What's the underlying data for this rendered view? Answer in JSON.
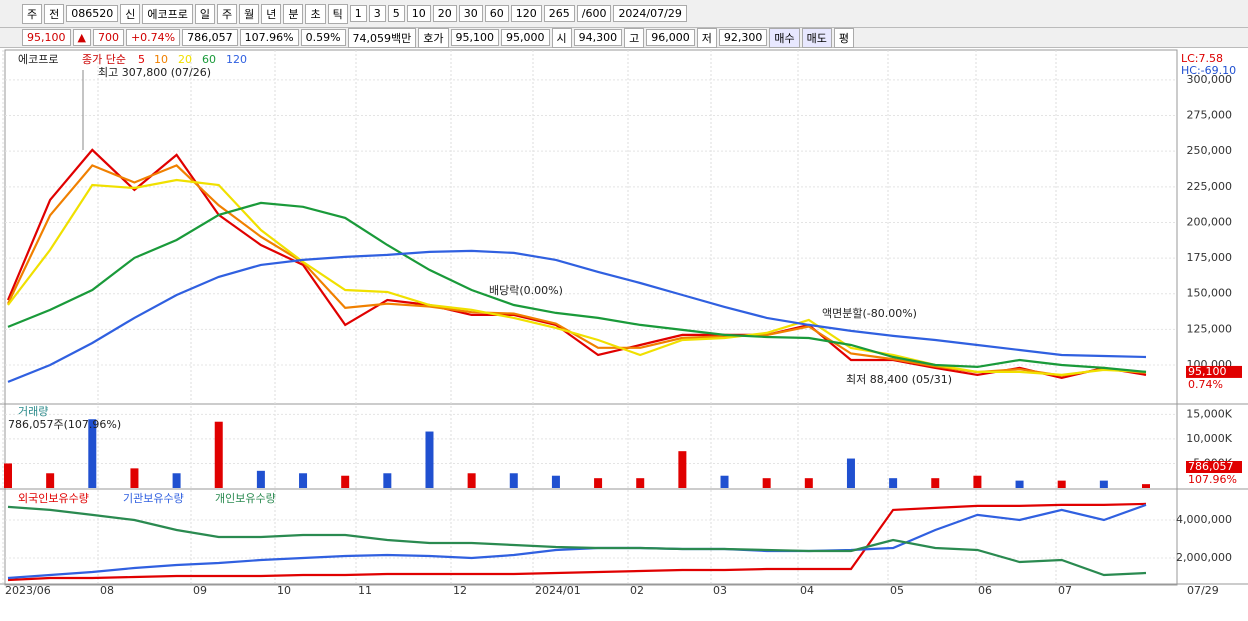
{
  "toolbar": {
    "row1": [
      "주",
      "전",
      "086520",
      "신",
      "에코프로",
      "일",
      "주",
      "월",
      "년",
      "분",
      "초",
      "틱",
      "1",
      "3",
      "5",
      "10",
      "20",
      "30",
      "60",
      "120",
      "265",
      "/600",
      "2024/07/29"
    ],
    "row2": [
      "95,100",
      "▲",
      "700",
      "+0.74%",
      "786,057",
      "107.96%",
      "0.59%",
      "74,059백만",
      "호가",
      "95,100",
      "95,000",
      "시",
      "94,300",
      "고",
      "96,000",
      "저",
      "92,300",
      "매수",
      "매도",
      "평"
    ]
  },
  "time_axis": {
    "labels": [
      "2023/06",
      "08",
      "09",
      "10",
      "11",
      "12",
      "2024/01",
      "02",
      "03",
      "04",
      "05",
      "06",
      "07",
      "07/29"
    ]
  },
  "chart_data": [
    {
      "type": "line",
      "title": "에코프로",
      "legend_title": "종가 단순",
      "series": [
        {
          "name": "5",
          "color": "#e00000",
          "values": [
            145600,
            215800,
            250900,
            222800,
            247400,
            205300,
            184200,
            170200,
            128100,
            145600,
            142100,
            135100,
            135100,
            128100,
            107000,
            114000,
            121100,
            121100,
            121100,
            128100,
            103500,
            103500,
            97900,
            93000,
            97900,
            90900,
            97900,
            93000
          ]
        },
        {
          "name": "10",
          "color": "#f08000",
          "values": [
            143000,
            205000,
            240000,
            228000,
            240000,
            212000,
            190000,
            172000,
            140000,
            143000,
            141000,
            137000,
            136000,
            129000,
            112000,
            112000,
            119000,
            120000,
            121000,
            127000,
            108000,
            104000,
            99000,
            95000,
            97000,
            92500,
            97000,
            94500
          ]
        },
        {
          "name": "20",
          "color": "#f0e000",
          "values": [
            142100,
            180700,
            226300,
            224200,
            229800,
            226300,
            194700,
            172300,
            152600,
            151200,
            142100,
            138600,
            133000,
            126000,
            117500,
            107000,
            117500,
            118900,
            122500,
            131600,
            111900,
            107000,
            100000,
            95100,
            95100,
            93000,
            96500,
            95100
          ]
        },
        {
          "name": "60",
          "color": "#1a9a3a",
          "values": [
            126700,
            138600,
            152600,
            175100,
            187700,
            205300,
            213700,
            211000,
            203200,
            184200,
            166700,
            152600,
            142100,
            136500,
            133000,
            128100,
            124600,
            121100,
            119600,
            118900,
            114000,
            105600,
            100000,
            98600,
            103500,
            100000,
            97900,
            95100
          ]
        },
        {
          "name": "120",
          "color": "#3060e0",
          "values": [
            88100,
            100000,
            115400,
            133000,
            149100,
            161800,
            170200,
            173700,
            175800,
            177200,
            179300,
            180000,
            178600,
            173700,
            165300,
            157500,
            149100,
            140700,
            133000,
            128100,
            123900,
            120400,
            117500,
            114000,
            110500,
            107000,
            106300,
            105600
          ]
        }
      ],
      "ylim": [
        73300,
        319600
      ],
      "yticks": [
        {
          "value": 100000,
          "label": "100,000"
        },
        {
          "value": 125000,
          "label": "125,000"
        },
        {
          "value": 150000,
          "label": "150,000"
        },
        {
          "value": 175000,
          "label": "175,000"
        },
        {
          "value": 200000,
          "label": "200,000"
        },
        {
          "value": 225000,
          "label": "225,000"
        },
        {
          "value": 250000,
          "label": "250,000"
        },
        {
          "value": 275000,
          "label": "275,000"
        },
        {
          "value": 300000,
          "label": "300,000"
        }
      ],
      "annotations": [
        "최고 307,800 (07/26)",
        "배당락(0.00%)",
        "액면분할(-80.00%)",
        "최저 88,400 (05/31)"
      ],
      "lc": "LC:7.58",
      "hc": "HC:-69.10",
      "current": {
        "value": 95100,
        "label": "95,100"
      },
      "current_change": "0.74%"
    },
    {
      "type": "bar",
      "title": "거래량",
      "subtitle": "786,057주(107.96%)",
      "values": [
        5000,
        3000,
        14000,
        4000,
        3000,
        13500,
        3500,
        3000,
        2500,
        3000,
        11500,
        3000,
        3000,
        2500,
        2000,
        2000,
        7500,
        2500,
        2000,
        2000,
        6000,
        2000,
        2000,
        2500,
        1500,
        1500,
        1500,
        786.057
      ],
      "colors": [
        "#e00000",
        "#e00000",
        "#2050d0",
        "#e00000",
        "#2050d0",
        "#e00000",
        "#2050d0",
        "#2050d0",
        "#e00000",
        "#2050d0",
        "#2050d0",
        "#e00000",
        "#2050d0",
        "#2050d0",
        "#e00000",
        "#e00000",
        "#e00000",
        "#2050d0",
        "#e00000",
        "#e00000",
        "#2050d0",
        "#2050d0",
        "#e00000",
        "#e00000",
        "#2050d0",
        "#e00000",
        "#2050d0",
        "#e00000"
      ],
      "ylim": [
        0,
        16700
      ],
      "yticks": [
        {
          "value": 5000,
          "label": "5,000K"
        },
        {
          "value": 10000,
          "label": "10,000K"
        },
        {
          "value": 15000,
          "label": "15,000K"
        }
      ],
      "current_label": "786,057",
      "ratio_label": "107.96%"
    },
    {
      "type": "line",
      "series": [
        {
          "name": "외국인보유수량",
          "color": "#e00000",
          "values": [
            842000,
            947000,
            947000,
            1000000,
            1053000,
            1053000,
            1053000,
            1105000,
            1105000,
            1158000,
            1158000,
            1158000,
            1158000,
            1211000,
            1263000,
            1316000,
            1368000,
            1368000,
            1421000,
            1421000,
            1421000,
            4526000,
            4632000,
            4737000,
            4737000,
            4789000,
            4789000,
            4842000
          ]
        },
        {
          "name": "기관보유수량",
          "color": "#3060e0",
          "values": [
            947000,
            1105000,
            1263000,
            1474000,
            1632000,
            1737000,
            1895000,
            2000000,
            2105000,
            2158000,
            2105000,
            2000000,
            2158000,
            2421000,
            2526000,
            2526000,
            2474000,
            2474000,
            2368000,
            2368000,
            2421000,
            2526000,
            3474000,
            4263000,
            4000000,
            4526000,
            4000000,
            4789000
          ]
        },
        {
          "name": "개인보유수량",
          "color": "#2a8a50",
          "values": [
            4684000,
            4526000,
            4263000,
            4000000,
            3474000,
            3105000,
            3105000,
            3211000,
            3211000,
            2947000,
            2789000,
            2789000,
            2684000,
            2579000,
            2526000,
            2526000,
            2474000,
            2474000,
            2421000,
            2368000,
            2368000,
            2947000,
            2526000,
            2421000,
            1789000,
            1895000,
            1105000,
            1211000
          ]
        }
      ],
      "ylim": [
        684000,
        5470000
      ],
      "yticks": [
        {
          "value": 2000000,
          "label": "2,000,000"
        },
        {
          "value": 4000000,
          "label": "4,000,000"
        }
      ]
    }
  ]
}
